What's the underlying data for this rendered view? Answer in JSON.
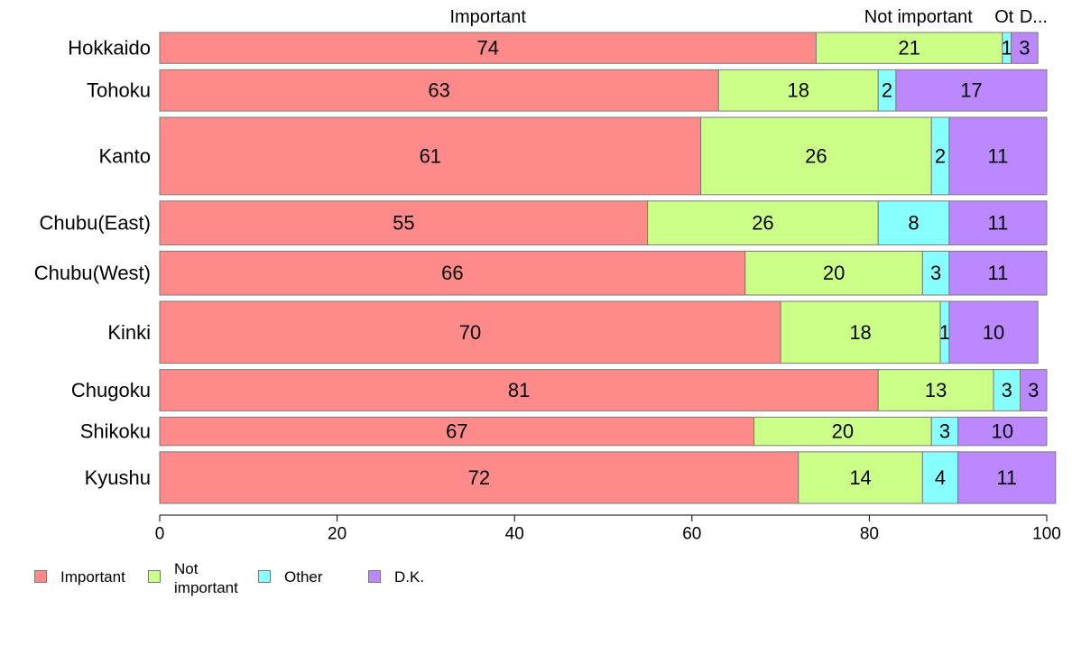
{
  "chart_data": {
    "type": "bar",
    "orientation": "horizontal",
    "stacked": true,
    "categories": [
      "Hokkaido",
      "Tohoku",
      "Kanto",
      "Chubu(East)",
      "Chubu(West)",
      "Kinki",
      "Chugoku",
      "Shikoku",
      "Kyushu"
    ],
    "relative_bar_heights": [
      0.6,
      0.8,
      1.5,
      0.85,
      0.85,
      1.2,
      0.8,
      0.55,
      1.0
    ],
    "series": [
      {
        "name": "Important",
        "color": "#ff8a8a",
        "values": [
          74,
          63,
          61,
          55,
          66,
          70,
          81,
          67,
          72
        ]
      },
      {
        "name": "Not important",
        "color": "#ccff88",
        "values": [
          21,
          18,
          26,
          26,
          20,
          18,
          13,
          20,
          14
        ]
      },
      {
        "name": "Other",
        "color": "#88ffff",
        "values": [
          1,
          2,
          2,
          8,
          3,
          1,
          3,
          3,
          4
        ]
      },
      {
        "name": "D.K.",
        "color": "#bb88ff",
        "values": [
          3,
          17,
          11,
          11,
          11,
          10,
          3,
          10,
          11
        ]
      }
    ],
    "top_labels": [
      "Important",
      "Not important",
      "Ot",
      "D..."
    ],
    "x_ticks": [
      "0",
      "20",
      "40",
      "60",
      "80",
      "100"
    ],
    "xlim": [
      0,
      100
    ],
    "grid": false,
    "legend": {
      "position": "bottom-left",
      "entries": [
        {
          "label": "Important",
          "color": "#ff8a8a"
        },
        {
          "label": "Not\nimportant",
          "color": "#ccff88"
        },
        {
          "label": "Other",
          "color": "#88ffff"
        },
        {
          "label": "D.K.",
          "color": "#bb88ff"
        }
      ]
    }
  }
}
